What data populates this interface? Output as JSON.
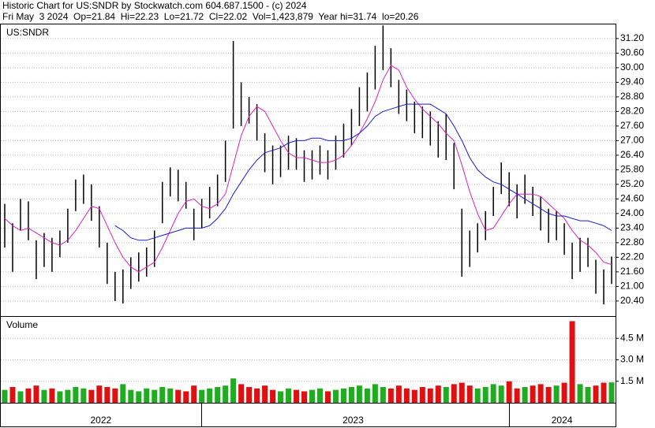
{
  "chart_data": {
    "type": "hl-bars",
    "title": "Historic Chart for US:SNDR by Stockwatch.com 604.687.1500 - (c) 2024",
    "subtitle": "Fri May  3 2024  Op=21.84  Hi=22.23  Lo=21.72  Cl=22.02  Vol=1,423,879  Year hi=31.74  lo=20.26",
    "symbol": "US:SNDR",
    "xlim": [
      -0.5,
      77.5
    ],
    "xticks": [
      {
        "value": 12.2,
        "label": "2022"
      },
      {
        "value": 44.2,
        "label": "2023"
      },
      {
        "value": 70.7,
        "label": "2024"
      }
    ],
    "ylim": [
      19.78,
      31.78
    ],
    "yticks": [
      {
        "value": 20.4,
        "label": "20.40"
      },
      {
        "value": 21.0,
        "label": "21.00"
      },
      {
        "value": 21.6,
        "label": "21.60"
      },
      {
        "value": 22.2,
        "label": "22.20"
      },
      {
        "value": 22.8,
        "label": "22.80"
      },
      {
        "value": 23.4,
        "label": "23.40"
      },
      {
        "value": 24.0,
        "label": "24.00"
      },
      {
        "value": 24.6,
        "label": "24.60"
      },
      {
        "value": 25.2,
        "label": "25.20"
      },
      {
        "value": 25.8,
        "label": "25.80"
      },
      {
        "value": 26.4,
        "label": "26.40"
      },
      {
        "value": 27.0,
        "label": "27.00"
      },
      {
        "value": 27.6,
        "label": "27.60"
      },
      {
        "value": 28.2,
        "label": "28.20"
      },
      {
        "value": 28.8,
        "label": "28.80"
      },
      {
        "value": 29.4,
        "label": "29.40"
      },
      {
        "value": 30.0,
        "label": "30.00"
      },
      {
        "value": 30.6,
        "label": "30.60"
      },
      {
        "value": 31.2,
        "label": "31.20"
      }
    ],
    "grid": true,
    "bar_color": "#000000",
    "high": [
      24.4,
      23.6,
      24.6,
      24.5,
      22.9,
      23.2,
      23,
      23.3,
      24.2,
      25.4,
      25.6,
      25.2,
      24.3,
      22.8,
      21.6,
      21.7,
      22.2,
      22.4,
      22.6,
      23.3,
      25.3,
      25.9,
      25.8,
      25.3,
      24.2,
      24.6,
      25.1,
      25.6,
      27,
      31.1,
      29.4,
      28.8,
      28.5,
      27.3,
      26.8,
      26.8,
      27.2,
      27.1,
      26.6,
      26.6,
      26.8,
      26.6,
      27.2,
      27.7,
      28.3,
      29.2,
      29.8,
      30.9,
      31.74,
      30.8,
      29.5,
      29.1,
      28.6,
      28.4,
      28.2,
      27.8,
      28.1,
      26.9,
      24.2,
      23.3,
      23.6,
      24.1,
      25.1,
      26.1,
      25.7,
      25.2,
      25.6,
      25.1,
      24.7,
      24.2,
      24.1,
      23.6,
      22.8,
      23,
      23,
      22.1,
      21.7,
      22.23
    ],
    "low": [
      22.6,
      21.6,
      23.3,
      22.9,
      21.3,
      21.8,
      21.6,
      22.2,
      22.8,
      24.1,
      24.4,
      23.7,
      22.6,
      21.1,
      20.4,
      20.3,
      20.9,
      21.2,
      21.4,
      21.8,
      23.6,
      24.7,
      24.5,
      24.2,
      22.9,
      23.4,
      23.8,
      24.3,
      25.3,
      27.5,
      27.6,
      27.7,
      27,
      25.7,
      25.2,
      25.5,
      25.8,
      25.8,
      25.3,
      25.4,
      25.6,
      25.4,
      25.8,
      26.3,
      26.8,
      27.6,
      28.2,
      29.1,
      29.9,
      29.2,
      28.1,
      27.8,
      27.3,
      27.1,
      26.8,
      26.3,
      26.2,
      25,
      21.4,
      21.8,
      22.4,
      22.9,
      23.9,
      24.8,
      24.3,
      23.8,
      24.4,
      23.9,
      23.3,
      22.8,
      22.9,
      22.3,
      21.3,
      21.6,
      21.8,
      20.7,
      20.26,
      21.1
    ],
    "series": [
      {
        "color": "#e020c0",
        "values": [
          23.8,
          23.5,
          23.3,
          23.4,
          23.2,
          23,
          22.8,
          22.7,
          22.9,
          23.3,
          23.8,
          24.3,
          24.2,
          23.5,
          22.8,
          22.2,
          21.8,
          21.6,
          21.8,
          22,
          22.6,
          23.3,
          24,
          24.5,
          24.6,
          24.3,
          24.2,
          24.4,
          24.8,
          26,
          27.2,
          28,
          28.4,
          28.2,
          27.6,
          27,
          26.5,
          26.3,
          26.3,
          26.2,
          26.1,
          26.1,
          26.2,
          26.4,
          26.8,
          27.3,
          27.9,
          28.6,
          29.5,
          30.1,
          29.9,
          29.2,
          28.7,
          28.3,
          28,
          27.7,
          27.3,
          27,
          26,
          24.9,
          24,
          23.3,
          23.4,
          23.9,
          24.4,
          24.8,
          24.8,
          24.8,
          24.7,
          24.4,
          24.1,
          23.8,
          23.3,
          22.9,
          22.7,
          22.4,
          22,
          21.9
        ]
      },
      {
        "color": "#1a1acc",
        "values": [
          null,
          null,
          null,
          null,
          null,
          null,
          null,
          null,
          null,
          null,
          null,
          null,
          null,
          null,
          23.5,
          23.3,
          23,
          22.9,
          22.9,
          23,
          23.1,
          23.2,
          23.3,
          23.4,
          23.4,
          23.4,
          23.5,
          23.8,
          24.2,
          24.8,
          25.3,
          25.8,
          26.2,
          26.5,
          26.6,
          26.7,
          26.9,
          27,
          27,
          27.1,
          27.1,
          27,
          27,
          27,
          27.1,
          27.3,
          27.6,
          28,
          28.2,
          28.3,
          28.4,
          28.5,
          28.5,
          28.5,
          28.5,
          28.3,
          28.1,
          27.6,
          27,
          26.3,
          25.8,
          25.5,
          25.3,
          25.2,
          25,
          24.8,
          24.6,
          24.4,
          24.2,
          24,
          23.9,
          23.9,
          23.8,
          23.7,
          23.7,
          23.6,
          23.5,
          23.3
        ]
      }
    ],
    "volume": {
      "title": "Volume",
      "up_color": "#22aa22",
      "down_color": "#dd1111",
      "ylim": [
        0,
        6000000
      ],
      "yticks": [
        {
          "value": 1500000,
          "label": "1.5 M"
        },
        {
          "value": 3000000,
          "label": "3.0 M"
        },
        {
          "value": 4500000,
          "label": "4.5 M"
        }
      ],
      "values": [
        900000,
        1100000,
        800000,
        1000000,
        1200000,
        900000,
        1000000,
        800000,
        900000,
        1100000,
        1000000,
        900000,
        1200000,
        1100000,
        1000000,
        1300000,
        900000,
        800000,
        1000000,
        900000,
        1100000,
        1000000,
        900000,
        800000,
        1200000,
        900000,
        1000000,
        1100000,
        1200000,
        1700000,
        1300000,
        1100000,
        1000000,
        1200000,
        900000,
        800000,
        1000000,
        900000,
        800000,
        900000,
        1000000,
        800000,
        900000,
        1000000,
        1100000,
        1200000,
        1000000,
        1300000,
        1100000,
        1000000,
        1200000,
        1000000,
        900000,
        1100000,
        1000000,
        1200000,
        1100000,
        1300000,
        1400000,
        1200000,
        1000000,
        1100000,
        1300000,
        1200000,
        1500000,
        1000000,
        1100000,
        1200000,
        1300000,
        1100000,
        1200000,
        1400000,
        5700000,
        1300000,
        1100000,
        1200000,
        1400000,
        1423879
      ]
    }
  }
}
